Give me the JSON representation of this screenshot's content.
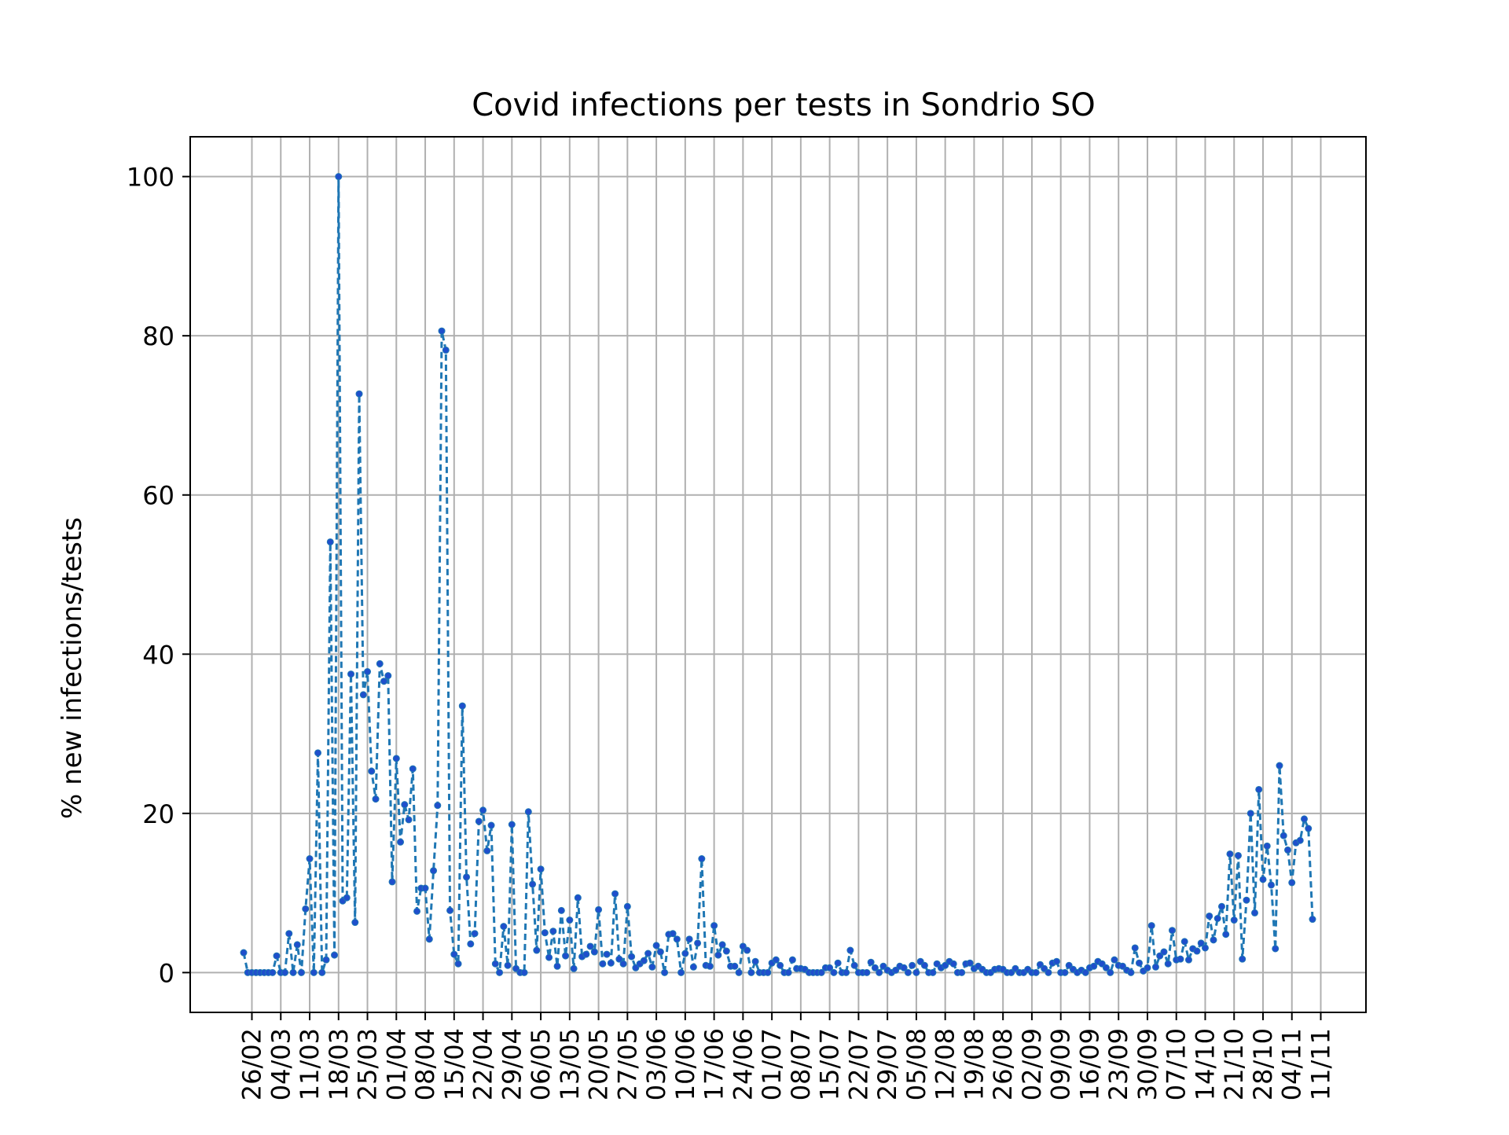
{
  "chart_data": {
    "type": "line",
    "title": "Covid infections per tests in Sondrio SO",
    "xlabel": "",
    "ylabel": "% new infections/tests",
    "ylim": [
      -5,
      105
    ],
    "yticks": [
      0,
      20,
      40,
      60,
      80,
      100
    ],
    "ytick_labels": [
      "0",
      "20",
      "40",
      "60",
      "80",
      "100"
    ],
    "x_start_date": "2020-02-24",
    "xtick_labels": [
      "26/02",
      "04/03",
      "11/03",
      "18/03",
      "25/03",
      "01/04",
      "08/04",
      "15/04",
      "22/04",
      "29/04",
      "06/05",
      "13/05",
      "20/05",
      "27/05",
      "03/06",
      "10/06",
      "17/06",
      "24/06",
      "01/07",
      "08/07",
      "15/07",
      "22/07",
      "29/07",
      "05/08",
      "12/08",
      "19/08",
      "26/08",
      "02/09",
      "09/09",
      "16/09",
      "23/09",
      "30/09",
      "07/10",
      "14/10",
      "21/10",
      "28/10",
      "04/11",
      "11/11"
    ],
    "grid": true,
    "line_style": "dashed",
    "colors": {
      "line": "#1f77b4",
      "marker": "#1f4fcc",
      "grid": "#b0b0b0"
    },
    "series": [
      {
        "name": "",
        "values": [
          2.5,
          0,
          0,
          0,
          0,
          0,
          0,
          0,
          2.1,
          0,
          0,
          4.9,
          0,
          3.5,
          0,
          8,
          14.3,
          0,
          27.6,
          0,
          1.6,
          54.1,
          2.2,
          100,
          9,
          9.4,
          37.5,
          6.3,
          72.7,
          34.9,
          37.8,
          25.3,
          21.8,
          38.8,
          36.6,
          37.3,
          11.4,
          26.9,
          16.4,
          21.1,
          19.2,
          25.6,
          7.7,
          10.6,
          10.6,
          4.2,
          12.8,
          21,
          80.6,
          78.2,
          7.8,
          2.3,
          1.1,
          33.5,
          12,
          3.6,
          4.9,
          19,
          20.4,
          15.3,
          18.5,
          1.1,
          0,
          5.8,
          0.9,
          18.6,
          0.5,
          0,
          0,
          20.2,
          11.1,
          2.8,
          13,
          5,
          1.9,
          5.2,
          0.8,
          7.8,
          2.1,
          6.6,
          0.5,
          9.4,
          2,
          2.3,
          3.3,
          2.6,
          7.9,
          1.1,
          2.3,
          1.2,
          9.9,
          1.7,
          1.1,
          8.3,
          2,
          0.6,
          1.1,
          1.5,
          2.4,
          0.7,
          3.4,
          2.6,
          0,
          4.8,
          4.9,
          4.2,
          0,
          2.4,
          4.2,
          0.7,
          3.7,
          14.3,
          0.9,
          0.8,
          5.9,
          2.2,
          3.5,
          2.7,
          0.8,
          0.8,
          0,
          3.3,
          2.8,
          0,
          1.4,
          0,
          0,
          0,
          1.2,
          1.6,
          0.9,
          0,
          0,
          1.6,
          0.5,
          0.5,
          0.4,
          0,
          0,
          0,
          0,
          0.6,
          0.6,
          0,
          1.2,
          0,
          0,
          2.8,
          0.9,
          0,
          0,
          0,
          1.3,
          0.6,
          0,
          0.8,
          0.3,
          0,
          0.3,
          0.8,
          0.6,
          0,
          0.9,
          0,
          1.4,
          0.9,
          0,
          0,
          1.1,
          0.6,
          0.9,
          1.4,
          1.1,
          0,
          0,
          1.1,
          1.2,
          0.5,
          0.8,
          0.4,
          0,
          0,
          0.4,
          0.5,
          0.4,
          0,
          0,
          0.5,
          0,
          0,
          0.4,
          0,
          0,
          1,
          0.5,
          0,
          1.2,
          1.4,
          0,
          0,
          0.9,
          0.4,
          0,
          0.3,
          0,
          0.6,
          0.8,
          1.4,
          1.1,
          0.6,
          0,
          1.6,
          0.9,
          0.8,
          0.3,
          0,
          3.1,
          1.2,
          0.2,
          0.6,
          5.9,
          0.7,
          2.1,
          2.6,
          1.1,
          5.3,
          1.6,
          1.7,
          3.9,
          1.6,
          3,
          2.7,
          3.7,
          3.1,
          7.1,
          4.1,
          6.8,
          8.3,
          4.8,
          14.9,
          6.6,
          14.7,
          1.7,
          9.1,
          20,
          7.5,
          23,
          11.7,
          15.9,
          11,
          3,
          26,
          17.2,
          15.4,
          11.3,
          16.3,
          16.6,
          19.3,
          18.1,
          6.7
        ]
      }
    ]
  }
}
